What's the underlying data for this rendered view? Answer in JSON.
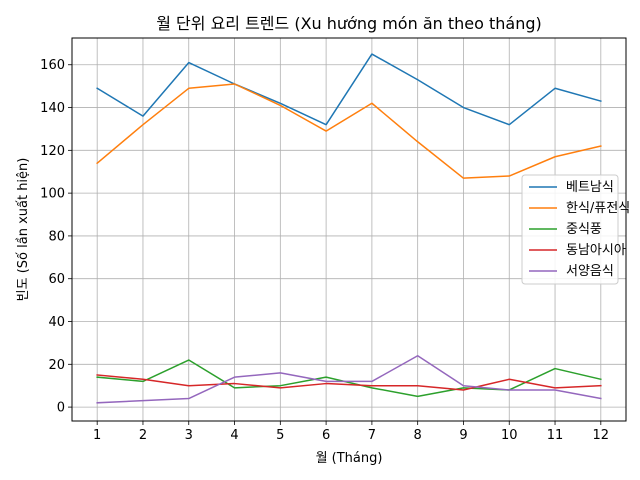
{
  "chart_data": {
    "type": "line",
    "title": "월 단위 요리 트렌드 (Xu hướng món ăn theo tháng)",
    "xlabel": "월 (Tháng)",
    "ylabel": "빈도 (Số lần xuất hiện)",
    "x": [
      1,
      2,
      3,
      4,
      5,
      6,
      7,
      8,
      9,
      10,
      11,
      12
    ],
    "xticks": [
      "1",
      "2",
      "3",
      "4",
      "5",
      "6",
      "7",
      "8",
      "9",
      "10",
      "11",
      "12"
    ],
    "yticks": [
      "0",
      "20",
      "40",
      "60",
      "80",
      "100",
      "120",
      "140",
      "160"
    ],
    "xlim": [
      0.45,
      12.55
    ],
    "ylim": [
      -6.5,
      172.5
    ],
    "grid": true,
    "legend_position": "center-right",
    "series": [
      {
        "name": "베트남식",
        "color": "#1f77b4",
        "values": [
          149,
          136,
          161,
          151,
          142,
          132,
          165,
          153,
          140,
          132,
          149,
          143
        ]
      },
      {
        "name": "한식/퓨전식",
        "color": "#ff7f0e",
        "values": [
          114,
          132,
          149,
          151,
          141,
          129,
          142,
          124,
          107,
          108,
          117,
          122
        ]
      },
      {
        "name": "중식풍",
        "color": "#2ca02c",
        "values": [
          14,
          12,
          22,
          9,
          10,
          14,
          9,
          5,
          9,
          8,
          18,
          13
        ]
      },
      {
        "name": "동남아시아",
        "color": "#d62728",
        "values": [
          15,
          13,
          10,
          11,
          9,
          11,
          10,
          10,
          8,
          13,
          9,
          10
        ]
      },
      {
        "name": "서양음식",
        "color": "#9467bd",
        "values": [
          2,
          3,
          4,
          14,
          16,
          12,
          12,
          24,
          10,
          8,
          8,
          4
        ]
      }
    ]
  }
}
